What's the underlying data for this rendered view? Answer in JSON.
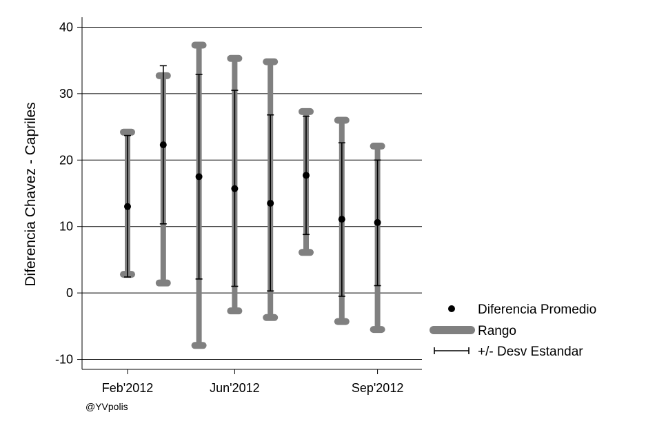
{
  "chart_data": {
    "type": "errorbar",
    "ylabel": "Diferencia Chavez - Capriles",
    "ylim": [
      -11.5,
      41.5
    ],
    "y_ticks": [
      -10,
      0,
      10,
      20,
      30,
      40
    ],
    "grid": "horizontal",
    "x_ticks": [
      {
        "label": "Feb'2012",
        "index": 0
      },
      {
        "label": "Jun'2012",
        "index": 3
      },
      {
        "label": "Sep'2012",
        "index": 7
      }
    ],
    "series": [
      {
        "name": "Diferencia Promedio",
        "values": [
          13.0,
          22.3,
          17.5,
          15.7,
          13.5,
          17.7,
          11.1,
          10.6
        ]
      },
      {
        "name": "Rango",
        "min": [
          2.8,
          1.5,
          -7.9,
          -2.7,
          -3.7,
          6.1,
          -4.3,
          -5.5
        ],
        "max": [
          24.2,
          32.7,
          37.3,
          35.3,
          34.8,
          27.3,
          26.0,
          22.1
        ]
      },
      {
        "name": "+/- Desv Estandar",
        "low": [
          2.4,
          10.4,
          2.1,
          1.0,
          0.3,
          8.8,
          -0.5,
          1.1
        ],
        "high": [
          23.7,
          34.2,
          32.9,
          30.5,
          26.8,
          26.6,
          22.6,
          20.0
        ]
      }
    ],
    "legend_position": "right"
  },
  "credit": "@YVpolis",
  "colors": {
    "range": "#808080",
    "point": "#000000",
    "grid": "#000000"
  }
}
